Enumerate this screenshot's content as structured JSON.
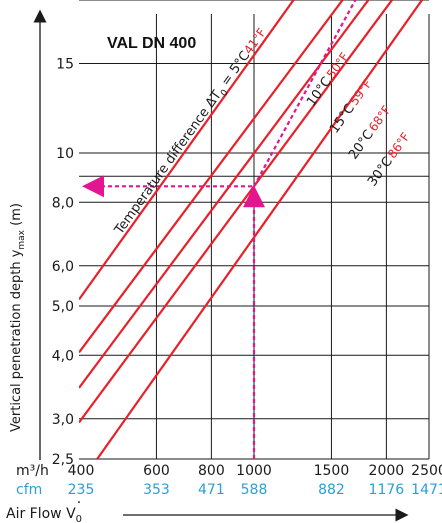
{
  "chart_data": {
    "type": "line",
    "title": "VAL DN 400",
    "ylabel": "Vertical penetration depth  y",
    "ylabel_sub": "max",
    "ylabel_unit": " (m)",
    "xlabel": "Air Flow V",
    "xlabel_sub": "0",
    "x_scale": "log",
    "y_scale": "log",
    "xlim": [
      400,
      2500
    ],
    "ylim": [
      2.5,
      20
    ],
    "x_unit_m3h": "m³/h",
    "x_unit_cfm": "cfm",
    "x_ticks": [
      {
        "v": 400,
        "label": "400",
        "cfm": "235"
      },
      {
        "v": 600,
        "label": "600",
        "cfm": "353"
      },
      {
        "v": 800,
        "label": "800",
        "cfm": "471"
      },
      {
        "v": 1000,
        "label": "1000",
        "cfm": "588"
      },
      {
        "v": 1500,
        "label": "1500",
        "cfm": "882"
      },
      {
        "v": 2000,
        "label": "2000",
        "cfm": "1176"
      },
      {
        "v": 2500,
        "label": "2500",
        "cfm": "1471"
      }
    ],
    "y_ticks": [
      {
        "v": 2.5,
        "label": "2,5"
      },
      {
        "v": 3,
        "label": "3,0"
      },
      {
        "v": 4,
        "label": "4,0"
      },
      {
        "v": 5,
        "label": "5,0"
      },
      {
        "v": 6,
        "label": "6,0"
      },
      {
        "v": 8,
        "label": "8,0"
      },
      {
        "v": 10,
        "label": "10"
      },
      {
        "v": 15,
        "label": "15"
      }
    ],
    "y_grid_extra": [
      9,
      20
    ],
    "series_note": "Temperature difference ΔT",
    "series_note_sub": "0",
    "series": [
      {
        "name": "5°C",
        "f_label": "41°F",
        "points": [
          [
            400,
            5.15
          ],
          [
            1230,
            20
          ]
        ]
      },
      {
        "name": "10°C",
        "f_label": "50°F",
        "points": [
          [
            400,
            4.05
          ],
          [
            1590,
            20
          ]
        ]
      },
      {
        "name": "15°C",
        "f_label": "59°F",
        "points": [
          [
            400,
            3.45
          ],
          [
            1820,
            20
          ]
        ]
      },
      {
        "name": "20°C",
        "f_label": "68°F",
        "points": [
          [
            400,
            2.95
          ],
          [
            2060,
            20
          ]
        ]
      },
      {
        "name": "30°C",
        "f_label": "86°F",
        "points": [
          [
            440,
            2.5
          ],
          [
            2410,
            20
          ]
        ]
      }
    ],
    "example": {
      "x": 1000,
      "y": 8.6,
      "slope_end": [
        1700,
        20
      ]
    },
    "colors": {
      "series": "#e8202a",
      "example": "#e3168f",
      "cfm": "#2a9fd8",
      "grid": "#1a1a1a",
      "f_label": "#e8202a"
    }
  }
}
